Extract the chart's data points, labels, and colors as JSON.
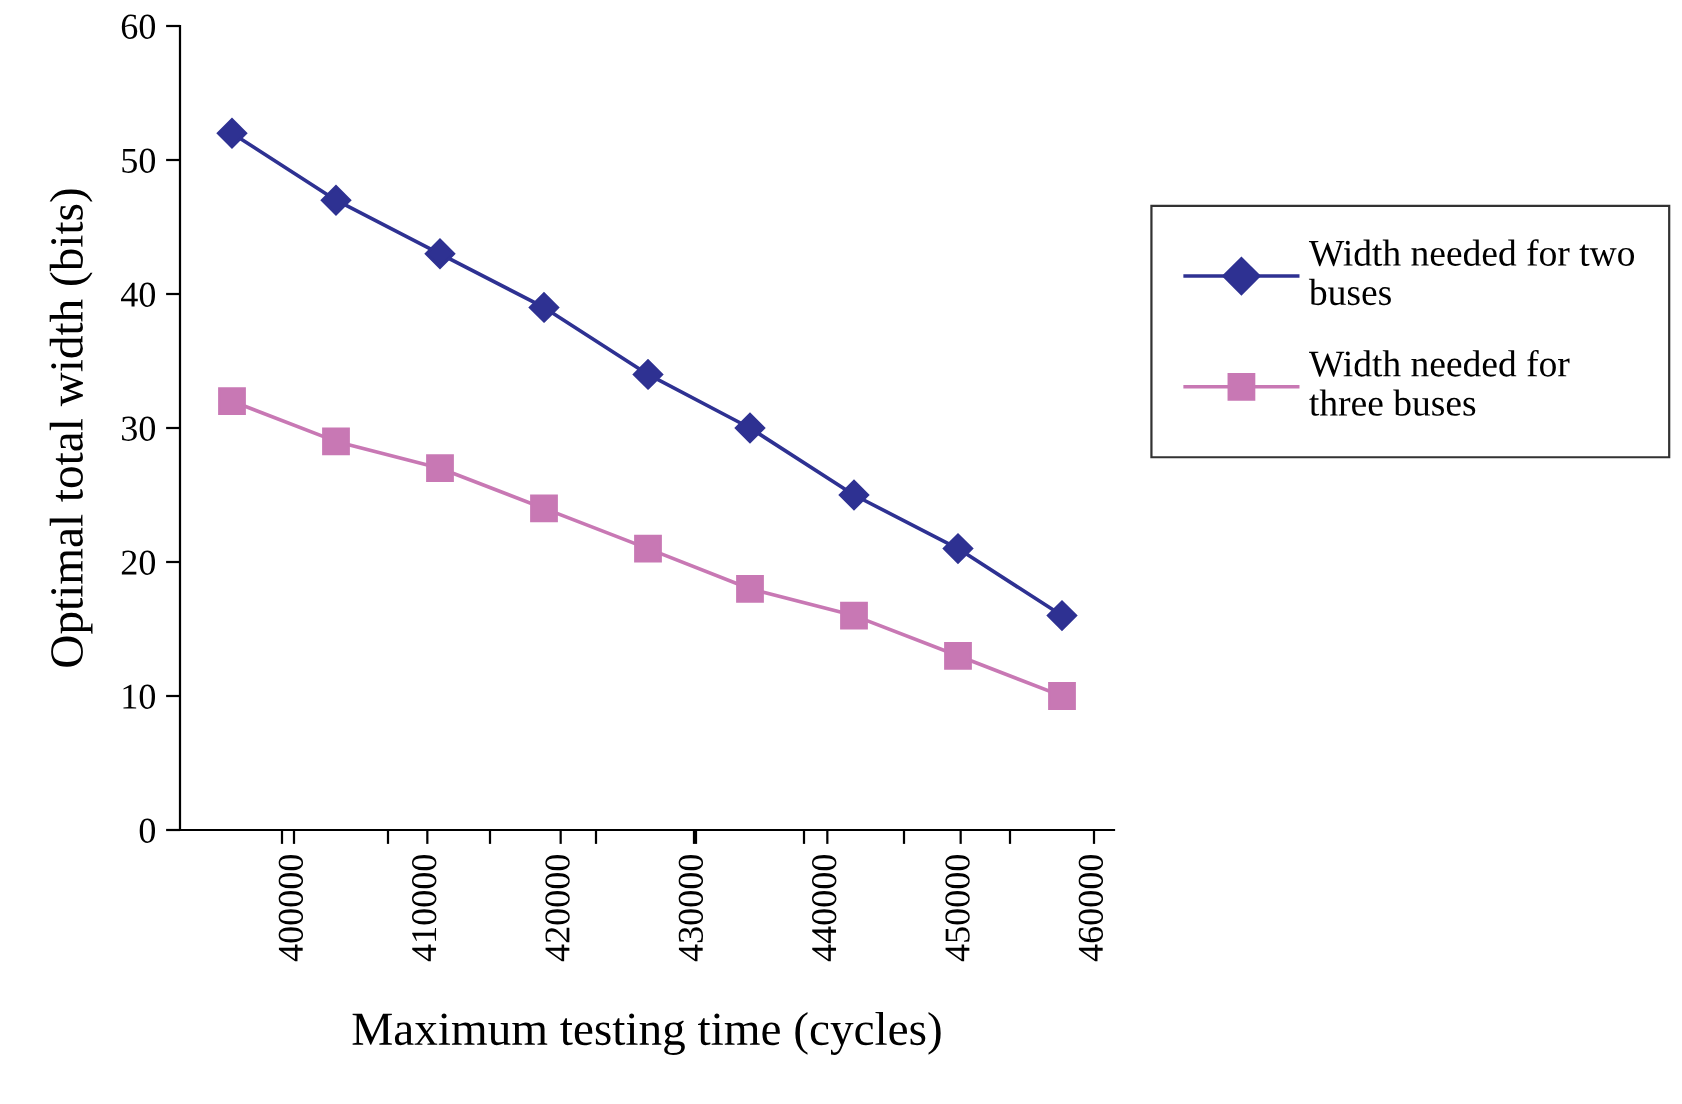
{
  "chart_data": {
    "type": "line",
    "xlabel": "Maximum testing time (cycles)",
    "ylabel": "Optimal total width (bits)",
    "x": [
      395350,
      403150,
      410950,
      418750,
      426550,
      434200,
      442000,
      449800,
      457600
    ],
    "series": [
      {
        "name": "Width needed for two buses",
        "color": "#2e3192",
        "marker": "diamond",
        "values": [
          52,
          47,
          43,
          39,
          34,
          30,
          25,
          21,
          16
        ]
      },
      {
        "name": "Width needed for three buses",
        "color": "#c878b4",
        "marker": "square",
        "values": [
          32,
          29,
          27,
          24,
          21,
          18,
          16,
          13,
          10
        ]
      }
    ],
    "xlim": [
      391450,
      461500
    ],
    "xticks": [
      400000,
      410000,
      420000,
      430000,
      440000,
      450000,
      460000,
      {
        "value": 399100,
        "label": null
      },
      {
        "value": 407050,
        "label": null
      },
      {
        "value": 414700,
        "label": null
      },
      {
        "value": 422650,
        "label": null
      },
      {
        "value": 430150,
        "label": null
      },
      {
        "value": 438250,
        "label": null
      },
      {
        "value": 445750,
        "label": null
      },
      {
        "value": 453700,
        "label": null
      }
    ],
    "ylim": [
      0,
      60
    ],
    "yticks": [
      0,
      10,
      20,
      30,
      40,
      50,
      60
    ],
    "grid": false,
    "legend": "right",
    "line_style": "solid"
  }
}
